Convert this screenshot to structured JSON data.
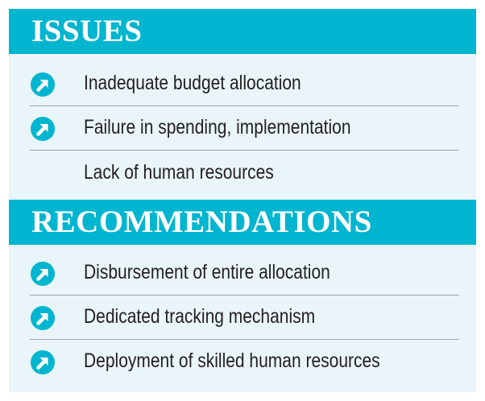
{
  "issues": {
    "title": "ISSUES",
    "items": [
      {
        "label": "Inadequate budget allocation",
        "icon": "arrow-up-right-circle-icon"
      },
      {
        "label": "Failure in spending, implementation",
        "icon": "arrow-up-right-circle-icon"
      },
      {
        "label": "Lack of human resources",
        "icon": ""
      }
    ]
  },
  "recommendations": {
    "title": "RECOMMENDATIONS",
    "items": [
      {
        "label": "Disbursement of entire allocation",
        "icon": "arrow-up-right-circle-icon"
      },
      {
        "label": "Dedicated tracking mechanism",
        "icon": "arrow-up-right-circle-icon"
      },
      {
        "label": "Deployment of skilled human resources",
        "icon": "arrow-up-right-circle-icon"
      }
    ]
  },
  "colors": {
    "header_bg": "#00b5cf",
    "panel_bg": "#e9f5f8",
    "icon_color": "#00b5cf",
    "text_color": "#231f20",
    "divider_color": "#9aa6aa"
  }
}
